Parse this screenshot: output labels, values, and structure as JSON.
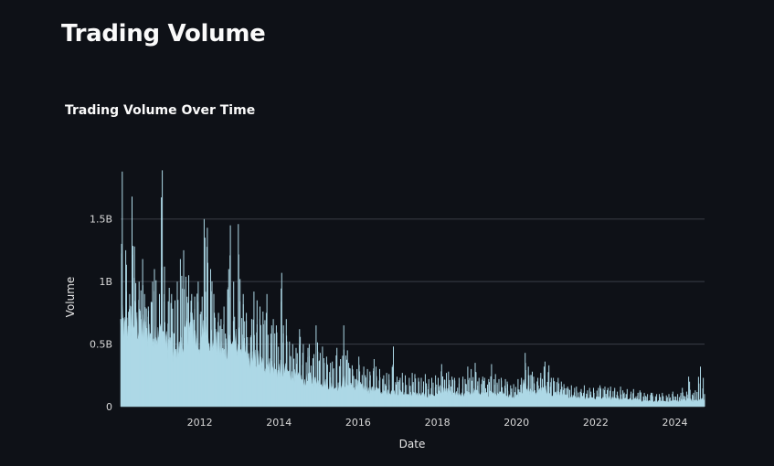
{
  "page": {
    "title": "Trading Volume"
  },
  "chart_data": {
    "type": "area",
    "title": "Trading Volume Over Time",
    "xlabel": "Date",
    "ylabel": "Volume",
    "xlim": [
      "2010-01-01",
      "2024-10-01"
    ],
    "ylim": [
      0,
      1900000000
    ],
    "grid": true,
    "legend": "none",
    "colors": {
      "fill": "#add8e6",
      "grid": "#3a3e47",
      "background": "#0e1117"
    },
    "x_ticks": [
      {
        "label": "2012",
        "date": "2012-01-01"
      },
      {
        "label": "2014",
        "date": "2014-01-01"
      },
      {
        "label": "2016",
        "date": "2016-01-01"
      },
      {
        "label": "2018",
        "date": "2018-01-01"
      },
      {
        "label": "2020",
        "date": "2020-01-01"
      },
      {
        "label": "2022",
        "date": "2022-01-01"
      },
      {
        "label": "2024",
        "date": "2024-01-01"
      }
    ],
    "y_ticks": [
      {
        "label": "0",
        "value": 0
      },
      {
        "label": "0.5B",
        "value": 500000000
      },
      {
        "label": "1B",
        "value": 1000000000
      },
      {
        "label": "1.5B",
        "value": 1500000000
      }
    ],
    "series": [
      {
        "x": [
          "2010-01-01",
          "2010-02-01",
          "2010-03-01",
          "2010-04-01",
          "2010-05-01",
          "2010-06-01",
          "2010-07-01",
          "2010-08-01",
          "2010-09-01",
          "2010-10-01",
          "2010-11-01",
          "2010-12-01",
          "2011-01-01",
          "2011-02-01",
          "2011-03-01",
          "2011-04-01",
          "2011-05-01",
          "2011-06-01",
          "2011-07-01",
          "2011-08-01",
          "2011-09-01",
          "2011-10-01",
          "2011-11-01",
          "2011-12-01",
          "2012-01-01",
          "2012-02-01",
          "2012-03-01",
          "2012-04-01",
          "2012-05-01",
          "2012-06-01",
          "2012-07-01",
          "2012-08-01",
          "2012-09-01",
          "2012-10-01",
          "2012-11-01",
          "2012-12-01",
          "2013-01-01",
          "2013-02-01",
          "2013-03-01",
          "2013-04-01",
          "2013-05-01",
          "2013-06-01",
          "2013-07-01",
          "2013-08-01",
          "2013-09-01",
          "2013-10-01",
          "2013-11-01",
          "2013-12-01",
          "2014-01-01",
          "2014-02-01",
          "2014-03-01",
          "2014-04-01",
          "2014-05-01",
          "2014-06-01",
          "2014-07-01",
          "2014-08-01",
          "2014-09-01",
          "2014-10-01",
          "2014-11-01",
          "2014-12-01",
          "2015-01-01",
          "2015-02-01",
          "2015-03-01",
          "2015-04-01",
          "2015-05-01",
          "2015-06-01",
          "2015-07-01",
          "2015-08-01",
          "2015-09-01",
          "2015-10-01",
          "2015-11-01",
          "2015-12-01",
          "2016-01-01",
          "2016-02-01",
          "2016-03-01",
          "2016-04-01",
          "2016-05-01",
          "2016-06-01",
          "2016-07-01",
          "2016-08-01",
          "2016-09-01",
          "2016-10-01",
          "2016-11-01",
          "2016-12-01",
          "2017-01-01",
          "2017-02-01",
          "2017-03-01",
          "2017-04-01",
          "2017-05-01",
          "2017-06-01",
          "2017-07-01",
          "2017-08-01",
          "2017-09-01",
          "2017-10-01",
          "2017-11-01",
          "2017-12-01",
          "2018-01-01",
          "2018-02-01",
          "2018-03-01",
          "2018-04-01",
          "2018-05-01",
          "2018-06-01",
          "2018-07-01",
          "2018-08-01",
          "2018-09-01",
          "2018-10-01",
          "2018-11-01",
          "2018-12-01",
          "2019-01-01",
          "2019-02-01",
          "2019-03-01",
          "2019-04-01",
          "2019-05-01",
          "2019-06-01",
          "2019-07-01",
          "2019-08-01",
          "2019-09-01",
          "2019-10-01",
          "2019-11-01",
          "2019-12-01",
          "2020-01-01",
          "2020-02-01",
          "2020-03-01",
          "2020-04-01",
          "2020-05-01",
          "2020-06-01",
          "2020-07-01",
          "2020-08-01",
          "2020-09-01",
          "2020-10-01",
          "2020-11-01",
          "2020-12-01",
          "2021-01-01",
          "2021-02-01",
          "2021-03-01",
          "2021-04-01",
          "2021-05-01",
          "2021-06-01",
          "2021-07-01",
          "2021-08-01",
          "2021-09-01",
          "2021-10-01",
          "2021-11-01",
          "2021-12-01",
          "2022-01-01",
          "2022-02-01",
          "2022-03-01",
          "2022-04-01",
          "2022-05-01",
          "2022-06-01",
          "2022-07-01",
          "2022-08-01",
          "2022-09-01",
          "2022-10-01",
          "2022-11-01",
          "2022-12-01",
          "2023-01-01",
          "2023-02-01",
          "2023-03-01",
          "2023-04-01",
          "2023-05-01",
          "2023-06-01",
          "2023-07-01",
          "2023-08-01",
          "2023-09-01",
          "2023-10-01",
          "2023-11-01",
          "2023-12-01",
          "2024-01-01",
          "2024-02-01",
          "2024-03-01",
          "2024-04-01",
          "2024-05-01",
          "2024-06-01",
          "2024-07-01",
          "2024-08-01",
          "2024-09-01",
          "2024-10-01"
        ],
        "peak": [
          1880000000,
          1250000000,
          900000000,
          1680000000,
          1280000000,
          1000000000,
          1180000000,
          900000000,
          800000000,
          1000000000,
          1100000000,
          900000000,
          1890000000,
          1120000000,
          950000000,
          900000000,
          850000000,
          1000000000,
          1180000000,
          1250000000,
          1050000000,
          900000000,
          880000000,
          1000000000,
          880000000,
          1500000000,
          1430000000,
          1100000000,
          900000000,
          750000000,
          700000000,
          800000000,
          1100000000,
          1450000000,
          1000000000,
          1460000000,
          1020000000,
          900000000,
          750000000,
          700000000,
          920000000,
          850000000,
          800000000,
          760000000,
          900000000,
          650000000,
          700000000,
          650000000,
          1070000000,
          650000000,
          700000000,
          520000000,
          500000000,
          470000000,
          620000000,
          500000000,
          470000000,
          500000000,
          420000000,
          650000000,
          430000000,
          480000000,
          400000000,
          350000000,
          360000000,
          470000000,
          380000000,
          650000000,
          450000000,
          350000000,
          330000000,
          300000000,
          400000000,
          320000000,
          300000000,
          280000000,
          380000000,
          320000000,
          300000000,
          250000000,
          270000000,
          260000000,
          480000000,
          240000000,
          230000000,
          270000000,
          250000000,
          230000000,
          270000000,
          260000000,
          230000000,
          230000000,
          260000000,
          220000000,
          230000000,
          250000000,
          230000000,
          340000000,
          270000000,
          280000000,
          240000000,
          230000000,
          230000000,
          240000000,
          220000000,
          320000000,
          300000000,
          350000000,
          230000000,
          240000000,
          230000000,
          220000000,
          340000000,
          260000000,
          220000000,
          230000000,
          220000000,
          200000000,
          170000000,
          180000000,
          220000000,
          230000000,
          430000000,
          320000000,
          280000000,
          240000000,
          230000000,
          270000000,
          360000000,
          330000000,
          230000000,
          230000000,
          230000000,
          200000000,
          180000000,
          160000000,
          170000000,
          150000000,
          160000000,
          140000000,
          170000000,
          130000000,
          150000000,
          150000000,
          150000000,
          170000000,
          160000000,
          150000000,
          160000000,
          150000000,
          120000000,
          160000000,
          130000000,
          140000000,
          120000000,
          140000000,
          110000000,
          130000000,
          110000000,
          100000000,
          110000000,
          110000000,
          100000000,
          100000000,
          110000000,
          90000000,
          100000000,
          120000000,
          100000000,
          110000000,
          150000000,
          120000000,
          240000000,
          110000000,
          130000000,
          320000000,
          230000000,
          100000000
        ],
        "base": [
          650000000,
          600000000,
          620000000,
          680000000,
          700000000,
          650000000,
          620000000,
          580000000,
          600000000,
          620000000,
          620000000,
          550000000,
          600000000,
          550000000,
          500000000,
          480000000,
          420000000,
          450000000,
          480000000,
          550000000,
          600000000,
          620000000,
          560000000,
          500000000,
          520000000,
          600000000,
          620000000,
          550000000,
          520000000,
          480000000,
          450000000,
          420000000,
          480000000,
          520000000,
          500000000,
          520000000,
          480000000,
          440000000,
          400000000,
          360000000,
          380000000,
          380000000,
          360000000,
          330000000,
          340000000,
          320000000,
          300000000,
          280000000,
          300000000,
          280000000,
          280000000,
          260000000,
          240000000,
          220000000,
          220000000,
          200000000,
          210000000,
          220000000,
          200000000,
          200000000,
          200000000,
          190000000,
          180000000,
          170000000,
          160000000,
          160000000,
          160000000,
          200000000,
          180000000,
          160000000,
          150000000,
          140000000,
          170000000,
          150000000,
          140000000,
          130000000,
          130000000,
          140000000,
          120000000,
          110000000,
          110000000,
          110000000,
          130000000,
          110000000,
          110000000,
          100000000,
          100000000,
          95000000,
          100000000,
          100000000,
          90000000,
          95000000,
          90000000,
          85000000,
          90000000,
          90000000,
          110000000,
          130000000,
          120000000,
          120000000,
          100000000,
          100000000,
          90000000,
          90000000,
          90000000,
          110000000,
          110000000,
          120000000,
          110000000,
          100000000,
          95000000,
          95000000,
          110000000,
          100000000,
          90000000,
          100000000,
          90000000,
          85000000,
          80000000,
          80000000,
          90000000,
          110000000,
          180000000,
          140000000,
          120000000,
          110000000,
          110000000,
          130000000,
          140000000,
          120000000,
          110000000,
          100000000,
          110000000,
          100000000,
          90000000,
          80000000,
          80000000,
          75000000,
          70000000,
          65000000,
          70000000,
          65000000,
          65000000,
          70000000,
          70000000,
          75000000,
          75000000,
          70000000,
          70000000,
          65000000,
          55000000,
          60000000,
          60000000,
          60000000,
          55000000,
          55000000,
          55000000,
          55000000,
          50000000,
          45000000,
          45000000,
          45000000,
          40000000,
          40000000,
          40000000,
          40000000,
          40000000,
          45000000,
          45000000,
          45000000,
          50000000,
          50000000,
          60000000,
          45000000,
          45000000,
          60000000,
          55000000,
          40000000
        ]
      }
    ]
  }
}
